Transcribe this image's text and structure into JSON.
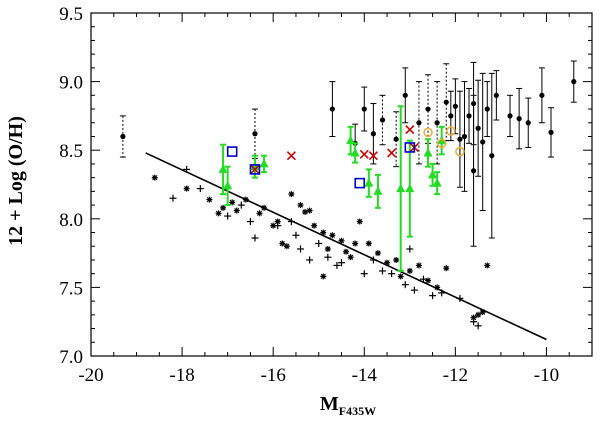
{
  "chart_data": {
    "type": "scatter",
    "title": "",
    "xlabel": "M",
    "xlabel_subscript": "F435W",
    "ylabel": "12 + Log (O/H)",
    "xlim": [
      -20,
      -9
    ],
    "ylim": [
      7.0,
      9.5
    ],
    "xticks": [
      -20,
      -18,
      -16,
      -14,
      -12,
      -10
    ],
    "xtick_labels": [
      "-20",
      "-18",
      "-16",
      "-14",
      "-12",
      "-10"
    ],
    "yticks": [
      7.0,
      7.5,
      8.0,
      8.5,
      9.0,
      9.5
    ],
    "ytick_labels": [
      "7.0",
      "7.5",
      "8.0",
      "8.5",
      "9.0",
      "9.5"
    ],
    "colors": {
      "axes": "#000000",
      "fit": "#000000",
      "green": "#22dd22",
      "red": "#cc0000",
      "blue": "#0000cc",
      "orange": "#e8b040"
    },
    "fit_line": {
      "x": [
        -18.8,
        -10.0
      ],
      "y": [
        8.48,
        7.12
      ]
    },
    "series": [
      {
        "name": "asterisk points",
        "marker": "asterisk",
        "points": [
          [
            -18.6,
            8.3
          ],
          [
            -17.9,
            8.22
          ],
          [
            -17.4,
            8.14
          ],
          [
            -17.2,
            8.04
          ],
          [
            -17.1,
            8.08
          ],
          [
            -16.9,
            8.12
          ],
          [
            -16.8,
            8.06
          ],
          [
            -16.6,
            8.14
          ],
          [
            -16.3,
            8.04
          ],
          [
            -16.2,
            8.08
          ],
          [
            -16.0,
            7.95
          ],
          [
            -15.9,
            7.98
          ],
          [
            -15.8,
            7.82
          ],
          [
            -15.6,
            8.18
          ],
          [
            -15.4,
            8.1
          ],
          [
            -15.3,
            8.05
          ],
          [
            -15.2,
            8.06
          ],
          [
            -15.1,
            7.95
          ],
          [
            -14.9,
            7.9
          ],
          [
            -14.8,
            7.78
          ],
          [
            -14.7,
            7.88
          ],
          [
            -14.5,
            7.84
          ],
          [
            -14.4,
            7.76
          ],
          [
            -14.3,
            7.72
          ],
          [
            -14.2,
            7.82
          ],
          [
            -14.1,
            7.98
          ],
          [
            -13.9,
            7.82
          ],
          [
            -13.7,
            7.75
          ],
          [
            -13.5,
            7.68
          ],
          [
            -13.3,
            7.7
          ],
          [
            -13.2,
            7.58
          ],
          [
            -13.0,
            7.62
          ],
          [
            -12.8,
            7.66
          ],
          [
            -12.6,
            7.55
          ],
          [
            -12.4,
            7.5
          ],
          [
            -12.2,
            7.64
          ],
          [
            -11.6,
            7.28
          ],
          [
            -11.5,
            7.3
          ],
          [
            -11.4,
            7.32
          ],
          [
            -11.3,
            7.66
          ],
          [
            -15.7,
            7.8
          ],
          [
            -14.9,
            7.58
          ]
        ]
      },
      {
        "name": "plus points",
        "marker": "plus",
        "points": [
          [
            -18.2,
            8.15
          ],
          [
            -17.9,
            8.36
          ],
          [
            -17.6,
            8.22
          ],
          [
            -17.0,
            8.02
          ],
          [
            -16.7,
            8.1
          ],
          [
            -16.5,
            7.98
          ],
          [
            -16.4,
            7.86
          ],
          [
            -15.9,
            7.95
          ],
          [
            -15.5,
            7.88
          ],
          [
            -15.4,
            7.78
          ],
          [
            -15.2,
            7.7
          ],
          [
            -15.0,
            7.82
          ],
          [
            -14.8,
            7.72
          ],
          [
            -14.6,
            7.66
          ],
          [
            -14.5,
            7.68
          ],
          [
            -14.0,
            7.6
          ],
          [
            -13.8,
            7.7
          ],
          [
            -13.6,
            7.62
          ],
          [
            -13.4,
            7.6
          ],
          [
            -13.1,
            7.52
          ],
          [
            -12.9,
            7.48
          ],
          [
            -12.7,
            7.56
          ],
          [
            -12.5,
            7.44
          ],
          [
            -12.3,
            7.46
          ],
          [
            -11.9,
            7.42
          ],
          [
            -11.6,
            7.25
          ],
          [
            -11.5,
            7.22
          ],
          [
            -15.6,
            7.98
          ],
          [
            -13.0,
            7.78
          ]
        ]
      },
      {
        "name": "black dots with error bars",
        "marker": "dot",
        "points": [
          [
            -19.3,
            8.6,
            0.15,
            "dotted"
          ],
          [
            -16.4,
            8.62,
            0.18,
            "dotted"
          ],
          [
            -14.7,
            8.8,
            0.2,
            "solid"
          ],
          [
            -14.0,
            8.8,
            0.16,
            "solid"
          ],
          [
            -13.6,
            8.72,
            0.18,
            "dotted"
          ],
          [
            -13.1,
            8.9,
            0.2,
            "solid"
          ],
          [
            -12.8,
            8.7,
            0.3,
            "dotted"
          ],
          [
            -12.6,
            8.8,
            0.25,
            "dotted"
          ],
          [
            -12.4,
            8.7,
            0.3,
            "dotted"
          ],
          [
            -12.2,
            8.85,
            0.28,
            "dotted"
          ],
          [
            -12.0,
            8.82,
            0.2,
            "solid"
          ],
          [
            -11.8,
            8.6,
            0.4,
            "solid"
          ],
          [
            -11.7,
            8.75,
            0.2,
            "solid"
          ],
          [
            -11.6,
            8.84,
            0.3,
            "solid"
          ],
          [
            -11.5,
            8.66,
            0.35,
            "solid"
          ],
          [
            -11.4,
            8.56,
            0.5,
            "solid"
          ],
          [
            -11.3,
            8.8,
            0.2,
            "solid"
          ],
          [
            -11.2,
            8.46,
            0.6,
            "solid"
          ],
          [
            -11.1,
            8.9,
            0.18,
            "solid"
          ],
          [
            -10.8,
            8.75,
            0.15,
            "solid"
          ],
          [
            -10.6,
            8.73,
            0.22,
            "solid"
          ],
          [
            -10.4,
            8.7,
            0.18,
            "solid"
          ],
          [
            -10.1,
            8.9,
            0.2,
            "solid"
          ],
          [
            -9.9,
            8.63,
            0.18,
            "solid"
          ],
          [
            -9.4,
            9.0,
            0.15,
            "solid"
          ],
          [
            -13.8,
            8.62,
            0.22,
            "solid"
          ],
          [
            -13.3,
            8.58,
            0.2,
            "dotted"
          ],
          [
            -12.1,
            8.75,
            0.18,
            "solid"
          ],
          [
            -11.9,
            8.58,
            0.35,
            "solid"
          ],
          [
            -14.2,
            8.55,
            0.14,
            "solid"
          ],
          [
            -11.6,
            8.35,
            0.55,
            "solid"
          ]
        ]
      },
      {
        "name": "green triangles",
        "marker": "triangle",
        "points": [
          [
            -17.1,
            8.36,
            0.18
          ],
          [
            -17.0,
            8.24,
            0.14
          ],
          [
            -16.4,
            8.38,
            0.08
          ],
          [
            -16.2,
            8.4,
            0.06
          ],
          [
            -14.3,
            8.57,
            0.1
          ],
          [
            -14.2,
            8.48,
            0.07
          ],
          [
            -13.9,
            8.26,
            0.1
          ],
          [
            -13.7,
            8.2,
            0.12
          ],
          [
            -13.2,
            8.22,
            0.6
          ],
          [
            -13.0,
            8.22,
            0.35
          ],
          [
            -12.6,
            8.48,
            0.1
          ],
          [
            -12.5,
            8.32,
            0.08
          ],
          [
            -12.4,
            8.26,
            0.08
          ],
          [
            -12.3,
            8.57,
            0.1
          ]
        ]
      },
      {
        "name": "red crosses",
        "marker": "cross",
        "points": [
          [
            -16.4,
            8.36
          ],
          [
            -15.6,
            8.46
          ],
          [
            -14.0,
            8.47
          ],
          [
            -13.8,
            8.46
          ],
          [
            -13.4,
            8.48
          ],
          [
            -13.0,
            8.65
          ],
          [
            -12.9,
            8.52
          ]
        ]
      },
      {
        "name": "blue squares",
        "marker": "square",
        "points": [
          [
            -16.9,
            8.49
          ],
          [
            -16.4,
            8.36
          ],
          [
            -14.1,
            8.26
          ],
          [
            -13.0,
            8.52
          ]
        ]
      },
      {
        "name": "orange circles",
        "marker": "circle",
        "points": [
          [
            -12.6,
            8.63
          ],
          [
            -12.3,
            8.55
          ],
          [
            -12.1,
            8.64
          ],
          [
            -11.9,
            8.49
          ]
        ]
      }
    ]
  }
}
